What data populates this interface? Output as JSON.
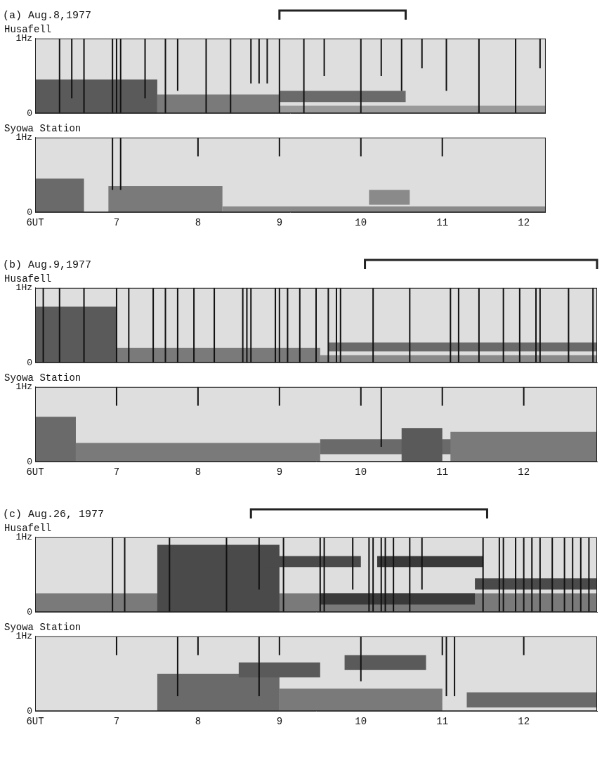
{
  "chart_data": [
    {
      "type": "spectrogram",
      "panel": "(a) Aug.8,1977",
      "title": "Husafell",
      "bracket": [
        9.0,
        10.55
      ],
      "xlim": [
        6,
        12.27
      ],
      "ylim": [
        0,
        1
      ],
      "yticks": [
        0,
        {
          "value": 1,
          "label": "1Hz"
        }
      ],
      "tick_labels": "y",
      "grid": false,
      "color": "#111111",
      "lines": [
        [
          6.3,
          0,
          1
        ],
        [
          6.45,
          0.2,
          1
        ],
        [
          6.6,
          0,
          1
        ],
        [
          6.95,
          0,
          1
        ],
        [
          7.0,
          0,
          1
        ],
        [
          7.05,
          0,
          1
        ],
        [
          7.35,
          0.2,
          1
        ],
        [
          7.6,
          0,
          1
        ],
        [
          7.75,
          0.3,
          1
        ],
        [
          8.1,
          0,
          1
        ],
        [
          8.4,
          0,
          1
        ],
        [
          8.65,
          0.4,
          1
        ],
        [
          8.75,
          0.4,
          1
        ],
        [
          8.85,
          0.4,
          1
        ],
        [
          9.0,
          0,
          1
        ],
        [
          9.3,
          0,
          1
        ],
        [
          9.55,
          0.5,
          1
        ],
        [
          10.0,
          0,
          1
        ],
        [
          10.25,
          0.5,
          1
        ],
        [
          10.5,
          0.3,
          1
        ],
        [
          10.75,
          0.6,
          1
        ],
        [
          11.05,
          0.3,
          1
        ],
        [
          11.45,
          0,
          1
        ],
        [
          11.9,
          0,
          1
        ],
        [
          12.2,
          0.6,
          1
        ]
      ],
      "bands": [
        {
          "x": [
            6,
            7.5
          ],
          "y": [
            0,
            0.45
          ],
          "color": "#5a5a5a"
        },
        {
          "x": [
            7.5,
            9
          ],
          "y": [
            0,
            0.25
          ],
          "color": "#7a7a7a"
        },
        {
          "x": [
            9,
            12.27
          ],
          "y": [
            0,
            0.1
          ],
          "color": "#9a9a9a"
        },
        {
          "x": [
            9,
            10.55
          ],
          "y": [
            0.15,
            0.3
          ],
          "color": "#6a6a6a"
        }
      ]
    },
    {
      "type": "spectrogram",
      "title": "Syowa Station",
      "xlim": [
        6,
        12.27
      ],
      "ylim": [
        0,
        1
      ],
      "yticks": [
        0,
        {
          "value": 1,
          "label": "1Hz"
        }
      ],
      "xticks": [
        {
          "value": 6,
          "label": "6UT"
        },
        7,
        8,
        9,
        10,
        11,
        12
      ],
      "tick_labels": true,
      "grid": false,
      "color": "#111111",
      "lines": [
        [
          6.95,
          0.3,
          1
        ],
        [
          7.05,
          0.3,
          1
        ],
        [
          8,
          0.75,
          1
        ],
        [
          9,
          0.75,
          1
        ],
        [
          10,
          0.75,
          1
        ],
        [
          11,
          0.75,
          1
        ]
      ],
      "bands": [
        {
          "x": [
            6,
            6.6
          ],
          "y": [
            0,
            0.45
          ],
          "color": "#6a6a6a"
        },
        {
          "x": [
            6.9,
            8.3
          ],
          "y": [
            0,
            0.35
          ],
          "color": "#7a7a7a"
        },
        {
          "x": [
            8.3,
            12.27
          ],
          "y": [
            0,
            0.08
          ],
          "color": "#8a8a8a"
        },
        {
          "x": [
            10.1,
            10.6
          ],
          "y": [
            0.1,
            0.3
          ],
          "color": "#8a8a8a"
        }
      ]
    },
    {
      "type": "spectrogram",
      "panel": "(b) Aug.9,1977",
      "title": "Husafell",
      "bracket": [
        10.05,
        12.9
      ],
      "xlim": [
        6,
        12.9
      ],
      "ylim": [
        0,
        1
      ],
      "yticks": [
        0,
        {
          "value": 1,
          "label": "1Hz"
        }
      ],
      "tick_labels": "y",
      "grid": false,
      "color": "#111111",
      "lines": [
        [
          6.1,
          0,
          1
        ],
        [
          6.3,
          0,
          1
        ],
        [
          6.6,
          0,
          1
        ],
        [
          7.0,
          0,
          1
        ],
        [
          7.15,
          0,
          1
        ],
        [
          7.45,
          0,
          1
        ],
        [
          7.6,
          0,
          1
        ],
        [
          7.75,
          0,
          1
        ],
        [
          7.95,
          0,
          1
        ],
        [
          8.2,
          0,
          1
        ],
        [
          8.55,
          0,
          1
        ],
        [
          8.6,
          0,
          1
        ],
        [
          8.65,
          0,
          1
        ],
        [
          8.95,
          0,
          1
        ],
        [
          9.0,
          0,
          1
        ],
        [
          9.1,
          0,
          1
        ],
        [
          9.25,
          0,
          1
        ],
        [
          9.45,
          0,
          1
        ],
        [
          9.6,
          0,
          1
        ],
        [
          9.7,
          0,
          1
        ],
        [
          9.75,
          0,
          1
        ],
        [
          10.15,
          0,
          1
        ],
        [
          10.6,
          0,
          1
        ],
        [
          11.1,
          0,
          1
        ],
        [
          11.2,
          0,
          1
        ],
        [
          11.45,
          0,
          1
        ],
        [
          11.75,
          0,
          1
        ],
        [
          11.95,
          0,
          1
        ],
        [
          12.15,
          0,
          1
        ],
        [
          12.2,
          0,
          1
        ],
        [
          12.55,
          0,
          1
        ],
        [
          12.85,
          0,
          1
        ]
      ],
      "bands": [
        {
          "x": [
            6,
            7
          ],
          "y": [
            0,
            0.75
          ],
          "color": "#5a5a5a"
        },
        {
          "x": [
            7,
            9.5
          ],
          "y": [
            0,
            0.2
          ],
          "color": "#7a7a7a"
        },
        {
          "x": [
            9.5,
            12.9
          ],
          "y": [
            0,
            0.1
          ],
          "color": "#8a8a8a"
        },
        {
          "x": [
            9.6,
            12.9
          ],
          "y": [
            0.15,
            0.27
          ],
          "color": "#6a6a6a"
        }
      ]
    },
    {
      "type": "spectrogram",
      "title": "Syowa Station",
      "xlim": [
        6,
        12.9
      ],
      "ylim": [
        0,
        1
      ],
      "yticks": [
        0,
        {
          "value": 1,
          "label": "1Hz"
        }
      ],
      "xticks": [
        {
          "value": 6,
          "label": "6UT"
        },
        7,
        8,
        9,
        10,
        11,
        12
      ],
      "tick_labels": true,
      "grid": false,
      "color": "#111111",
      "lines": [
        [
          7,
          0.75,
          1
        ],
        [
          8,
          0.75,
          1
        ],
        [
          9,
          0.75,
          1
        ],
        [
          10,
          0.75,
          1
        ],
        [
          10.25,
          0.2,
          1
        ],
        [
          11,
          0.75,
          1
        ],
        [
          12,
          0.75,
          1
        ]
      ],
      "bands": [
        {
          "x": [
            6,
            6.5
          ],
          "y": [
            0,
            0.6
          ],
          "color": "#6a6a6a"
        },
        {
          "x": [
            6.5,
            9.5
          ],
          "y": [
            0,
            0.25
          ],
          "color": "#7a7a7a"
        },
        {
          "x": [
            9.5,
            12.9
          ],
          "y": [
            0.1,
            0.3
          ],
          "color": "#6a6a6a"
        },
        {
          "x": [
            10.5,
            11.0
          ],
          "y": [
            0,
            0.45
          ],
          "color": "#5a5a5a"
        },
        {
          "x": [
            11.1,
            12.9
          ],
          "y": [
            0,
            0.4
          ],
          "color": "#7a7a7a"
        }
      ]
    },
    {
      "type": "spectrogram",
      "panel": "(c) Aug.26, 1977",
      "title": "Husafell",
      "bracket": [
        8.65,
        11.55
      ],
      "xlim": [
        6,
        12.9
      ],
      "ylim": [
        0,
        1
      ],
      "yticks": [
        0,
        {
          "value": 1,
          "label": "1Hz"
        }
      ],
      "tick_labels": "y",
      "grid": false,
      "color": "#111111",
      "lines": [
        [
          6.95,
          0,
          1
        ],
        [
          7.1,
          0,
          1
        ],
        [
          7.65,
          0,
          1
        ],
        [
          8.35,
          0,
          1
        ],
        [
          8.75,
          0.3,
          1
        ],
        [
          9.05,
          0,
          1
        ],
        [
          9.5,
          0,
          1
        ],
        [
          9.55,
          0,
          1
        ],
        [
          9.9,
          0.3,
          1
        ],
        [
          10.1,
          0,
          1
        ],
        [
          10.15,
          0,
          1
        ],
        [
          10.25,
          0,
          1
        ],
        [
          10.3,
          0,
          1
        ],
        [
          10.4,
          0,
          1
        ],
        [
          10.6,
          0,
          1
        ],
        [
          10.75,
          0.3,
          1
        ],
        [
          11.5,
          0,
          1
        ],
        [
          11.7,
          0,
          1
        ],
        [
          11.75,
          0,
          1
        ],
        [
          11.9,
          0,
          1
        ],
        [
          12.0,
          0,
          1
        ],
        [
          12.1,
          0,
          1
        ],
        [
          12.2,
          0,
          1
        ],
        [
          12.35,
          0,
          1
        ],
        [
          12.5,
          0,
          1
        ],
        [
          12.6,
          0,
          1
        ],
        [
          12.7,
          0,
          1
        ],
        [
          12.8,
          0,
          1
        ]
      ],
      "bands": [
        {
          "x": [
            6,
            12.9
          ],
          "y": [
            0,
            0.25
          ],
          "color": "#7a7a7a"
        },
        {
          "x": [
            7.5,
            9
          ],
          "y": [
            0,
            0.9
          ],
          "color": "#4a4a4a"
        },
        {
          "x": [
            8.8,
            10
          ],
          "y": [
            0.6,
            0.75
          ],
          "color": "#4a4a4a"
        },
        {
          "x": [
            10.2,
            11.5
          ],
          "y": [
            0.6,
            0.75
          ],
          "color": "#3a3a3a"
        },
        {
          "x": [
            9.5,
            11.4
          ],
          "y": [
            0.1,
            0.25
          ],
          "color": "#3a3a3a"
        },
        {
          "x": [
            11.4,
            12.9
          ],
          "y": [
            0.3,
            0.45
          ],
          "color": "#4a4a4a"
        }
      ]
    },
    {
      "type": "spectrogram",
      "title": "Syowa Station",
      "xlim": [
        6,
        12.9
      ],
      "ylim": [
        0,
        1
      ],
      "yticks": [
        0,
        {
          "value": 1,
          "label": "1Hz"
        }
      ],
      "xticks": [
        {
          "value": 6,
          "label": "6UT"
        },
        7,
        8,
        9,
        10,
        11,
        12
      ],
      "tick_labels": true,
      "grid": false,
      "color": "#111111",
      "lines": [
        [
          7,
          0.75,
          1
        ],
        [
          7.75,
          0.2,
          1
        ],
        [
          8,
          0.75,
          1
        ],
        [
          8.75,
          0.2,
          1
        ],
        [
          9,
          0.75,
          1
        ],
        [
          10,
          0.4,
          1
        ],
        [
          11,
          0.75,
          1
        ],
        [
          11.05,
          0.2,
          1
        ],
        [
          11.15,
          0.2,
          1
        ],
        [
          12,
          0.75,
          1
        ]
      ],
      "bands": [
        {
          "x": [
            9,
            11
          ],
          "y": [
            0,
            0.3
          ],
          "color": "#7a7a7a"
        },
        {
          "x": [
            7.5,
            9
          ],
          "y": [
            0,
            0.5
          ],
          "color": "#6a6a6a"
        },
        {
          "x": [
            8.5,
            9.5
          ],
          "y": [
            0.45,
            0.65
          ],
          "color": "#5a5a5a"
        },
        {
          "x": [
            9.8,
            10.8
          ],
          "y": [
            0.55,
            0.75
          ],
          "color": "#5a5a5a"
        },
        {
          "x": [
            11.3,
            12.9
          ],
          "y": [
            0.05,
            0.25
          ],
          "color": "#6a6a6a"
        }
      ]
    }
  ]
}
